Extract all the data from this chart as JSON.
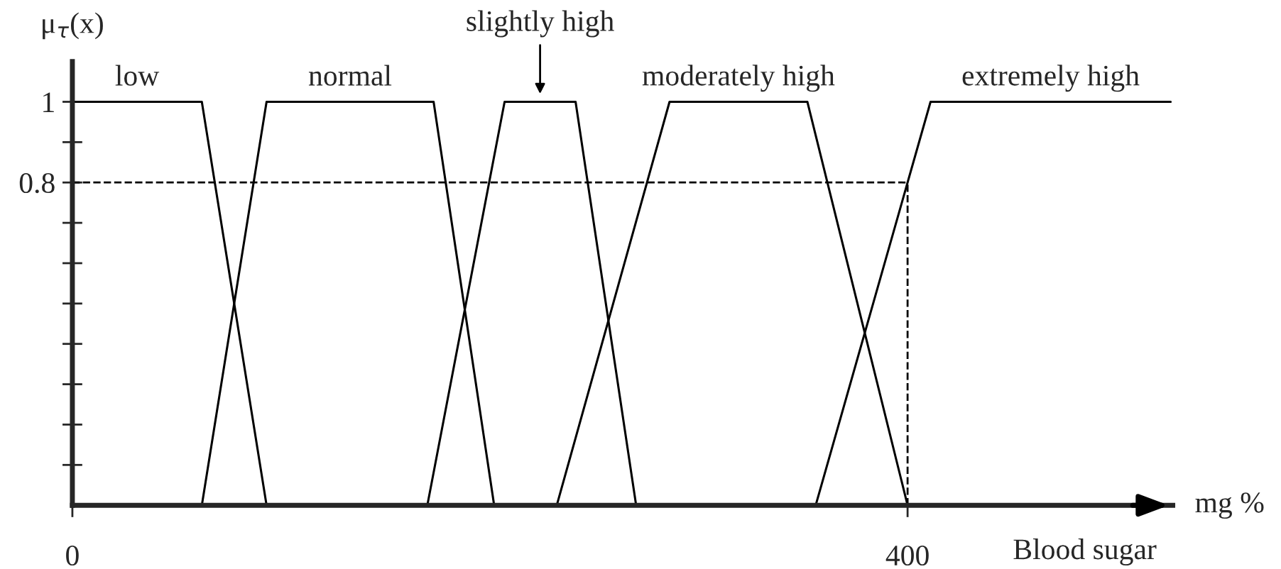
{
  "chart_data": {
    "type": "line",
    "xlabel": "Blood sugar",
    "ylabel": "μ$_{τ}$(x)",
    "annotations": [
      "mg %"
    ],
    "series": [
      {
        "name": "low",
        "color": "#000000",
        "x": [
          0,
          62,
          93
        ],
        "values": [
          1,
          1,
          0
        ]
      },
      {
        "name": "normal",
        "color": "#000000",
        "x": [
          62,
          93,
          173,
          202
        ],
        "values": [
          0,
          1,
          1,
          0
        ]
      },
      {
        "name": "slightly high",
        "color": "#000000",
        "x": [
          170,
          207,
          241,
          270
        ],
        "values": [
          0,
          1,
          1,
          0
        ]
      },
      {
        "name": "moderately high",
        "color": "#000000",
        "x": [
          232,
          286,
          352,
          400
        ],
        "values": [
          0,
          1,
          1,
          0
        ]
      },
      {
        "name": "extremely high",
        "color": "#000000",
        "x": [
          356,
          411,
          526
        ],
        "values": [
          0,
          1,
          1
        ]
      }
    ],
    "xlim": [
      0,
      527
    ],
    "ylim": [
      0,
      1.1
    ],
    "xticks": [
      0,
      400
    ],
    "yticks": [
      {
        "value": 0.1,
        "label": null
      },
      {
        "value": 0.2,
        "label": null
      },
      {
        "value": 0.3,
        "label": null
      },
      {
        "value": 0.4,
        "label": null
      },
      {
        "value": 0.5,
        "label": null
      },
      {
        "value": 0.6,
        "label": null
      },
      {
        "value": 0.7,
        "label": null
      },
      0.8,
      {
        "value": 0.9,
        "label": null
      },
      1
    ],
    "ref_lines": [
      {
        "axis": "y",
        "value": 0.8,
        "line_style": "dashed",
        "color": "#000000"
      },
      {
        "axis": "x",
        "value": 400,
        "line_style": "dashed",
        "color": "#000000"
      }
    ],
    "marker": "none",
    "line_style": "solid",
    "grid": false,
    "legend": false
  }
}
